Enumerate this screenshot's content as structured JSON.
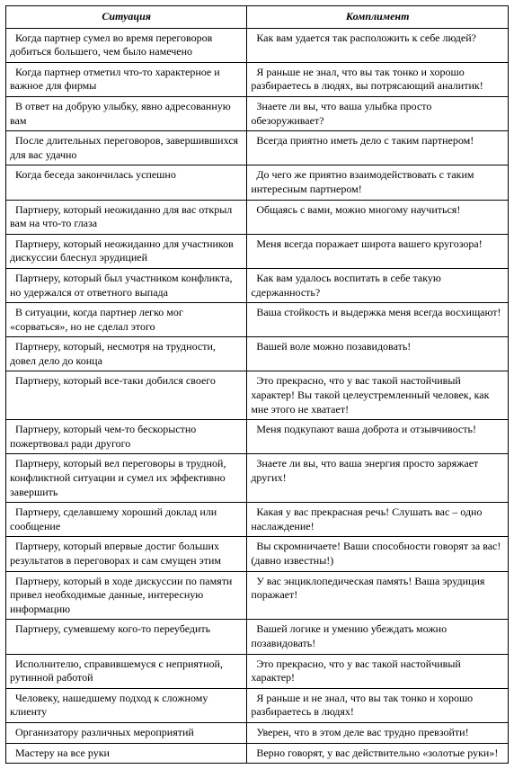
{
  "table": {
    "headers": [
      "Ситуация",
      "Комплимент"
    ],
    "rows": [
      [
        "Когда партнер сумел во время переговоров добиться большего, чем было намечено",
        "Как вам удается так расположить к себе людей?"
      ],
      [
        "Когда партнер отметил что-то характерное и важное для фирмы",
        "Я раньше не знал, что вы так тонко и хорошо разбираетесь в людях, вы потрясающий аналитик!"
      ],
      [
        "В ответ на добрую улыбку, явно адресованную вам",
        "Знаете ли вы, что ваша улыбка просто обезоруживает?"
      ],
      [
        "После длительных переговоров, завершившихся для вас удачно",
        "Всегда приятно иметь дело с таким партнером!"
      ],
      [
        "Когда беседа закончилась успешно",
        "До чего же приятно взаимодействовать с таким интересным партнером!"
      ],
      [
        "Партнеру, который неожиданно для вас открыл вам на что-то глаза",
        "Общаясь с вами, можно многому научиться!"
      ],
      [
        "Партнеру, который неожиданно для участников дискуссии блеснул эрудицией",
        "Меня всегда поражает широта вашего кругозора!"
      ],
      [
        "Партнеру, который был участником конфликта, но удержался от ответного выпада",
        "Как вам удалось воспитать в себе такую сдержанность?"
      ],
      [
        "В ситуации, когда партнер легко мог «сорваться», но не сделал этого",
        "Ваша стойкость и выдержка меня всегда восхищают!"
      ],
      [
        "Партнеру, который, несмотря на трудности, довел дело до конца",
        "Вашей воле можно позавидовать!"
      ],
      [
        "Партнеру, который все-таки добился своего",
        "Это прекрасно, что у вас такой настойчивый характер! Вы такой целеустремленный человек, как мне этого не хватает!"
      ],
      [
        "Партнеру, который чем-то бескорыстно пожертвовал ради другого",
        "Меня подкупают ваша доброта и отзывчивость!"
      ],
      [
        "Партнеру, который вел переговоры в трудной, конфликтной ситуации и сумел их эффективно завершить",
        "Знаете ли вы, что ваша энергия просто заряжает других!"
      ],
      [
        "Партнеру, сделавшему хороший доклад или сообщение",
        "Какая у вас прекрасная речь! Слушать вас – одно наслаждение!"
      ],
      [
        "Партнеру, который впервые достиг больших результатов в переговорах и сам смущен этим",
        "Вы скромничаете! Ваши способности говорят за вас! (давно известны!)"
      ],
      [
        "Партнеру, который в ходе дискуссии по памяти привел необходимые данные, интересную информацию",
        "У вас энциклопедическая память! Ваша эрудиция поражает!"
      ],
      [
        "Партнеру, сумевшему кого-то переубедить",
        "Вашей логике и умению убеждать можно позавидовать!"
      ],
      [
        "Исполнителю, справившемуся с неприятной, рутинной работой",
        "Это прекрасно, что у вас такой настойчивый характер!"
      ],
      [
        "Человеку, нашедшему подход к сложному клиенту",
        "Я раньше и не знал, что вы так тонко и хорошо разбираетесь в людях!"
      ],
      [
        "Организатору различных мероприятий",
        "Уверен, что в этом деле вас трудно превзойти!"
      ],
      [
        "Мастеру на все руки",
        "Верно говорят, у вас действительно «золотые руки»!"
      ]
    ]
  }
}
